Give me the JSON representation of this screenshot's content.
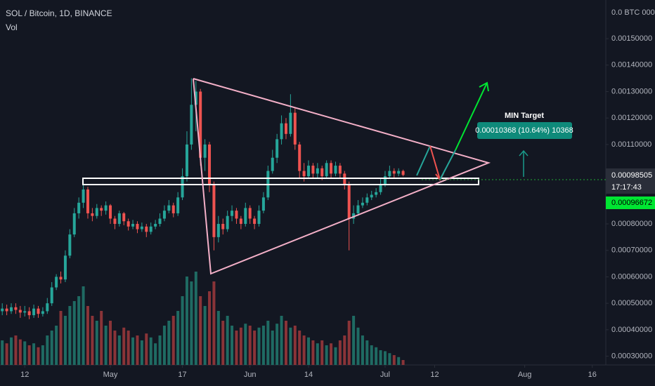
{
  "chart_data": {
    "type": "candlestick",
    "title": "SOL / Bitcoin, 1D, BINANCE",
    "volume_label": "Vol",
    "top_axis_label": "0.0 BTC 000",
    "up_color": "#26a69a",
    "down_color": "#ef5350",
    "volume_up_color": "#1f6b63",
    "volume_down_color": "#8a3438",
    "x": [
      -5,
      -4,
      -3,
      -2,
      -1,
      0,
      1,
      2,
      3,
      4,
      5,
      6,
      7,
      8,
      9,
      10,
      11,
      12,
      13,
      14,
      15,
      16,
      17,
      18,
      19,
      20,
      21,
      22,
      23,
      24,
      25,
      26,
      27,
      28,
      29,
      30,
      31,
      32,
      33,
      34,
      35,
      36,
      37,
      38,
      39,
      40,
      41,
      42,
      43,
      44,
      45,
      46,
      47,
      48,
      49,
      50,
      51,
      52,
      53,
      54,
      55,
      56,
      57,
      58,
      59,
      60,
      61,
      62,
      63,
      64,
      65,
      66,
      67,
      68,
      69,
      70,
      71,
      72,
      73,
      74,
      75,
      76,
      77,
      78,
      79,
      80,
      81,
      82,
      83,
      84
    ],
    "open": [
      0.00047,
      0.00048,
      0.00047,
      0.000485,
      0.000475,
      0.000465,
      0.00047,
      0.000455,
      0.00048,
      0.00046,
      0.00047,
      0.0005,
      0.00056,
      0.0006,
      0.00059,
      0.00068,
      0.00076,
      0.00084,
      0.00088,
      0.00093,
      0.00084,
      0.00083,
      0.00086,
      0.00085,
      0.00087,
      0.00082,
      0.0008,
      0.00084,
      0.00081,
      0.00079,
      0.0008,
      0.00078,
      0.00079,
      0.00077,
      0.00079,
      0.0008,
      0.00082,
      0.00085,
      0.00087,
      0.00084,
      0.0009,
      0.00098,
      0.0011,
      0.00125,
      0.0013,
      0.00105,
      0.0011,
      0.00095,
      0.00075,
      0.0008,
      0.00078,
      0.00083,
      0.00085,
      0.00082,
      0.0008,
      0.00086,
      0.00082,
      0.0008,
      0.00085,
      0.0009,
      0.001,
      0.00105,
      0.00112,
      0.00118,
      0.00114,
      0.00122,
      0.0011,
      0.001,
      0.00098,
      0.00102,
      0.00099,
      0.00101,
      0.00098,
      0.00103,
      0.00099,
      0.00102,
      0.00099,
      0.00095,
      0.00082,
      0.00084,
      0.00087,
      0.00088,
      0.0009,
      0.00091,
      0.00092,
      0.00095,
      0.00098,
      0.001,
      0.00099,
      0.001
    ],
    "high": [
      0.0005,
      0.000495,
      0.0005,
      0.0005,
      0.00049,
      0.00049,
      0.000485,
      0.000495,
      0.00049,
      0.000485,
      0.00052,
      0.00058,
      0.00061,
      0.00062,
      0.0007,
      0.00078,
      0.00086,
      0.0009,
      0.00096,
      0.00094,
      0.00086,
      0.000875,
      0.00087,
      0.000885,
      0.000875,
      0.00083,
      0.00085,
      0.000845,
      0.00082,
      0.000815,
      0.00081,
      0.000805,
      0.0008,
      0.000805,
      0.000815,
      0.00084,
      0.00087,
      0.00089,
      0.00088,
      0.00092,
      0.00101,
      0.00115,
      0.00135,
      0.00134,
      0.00131,
      0.00112,
      0.00111,
      0.00096,
      0.00083,
      0.00082,
      0.00085,
      0.00087,
      0.00086,
      0.00083,
      0.00088,
      0.00087,
      0.00083,
      0.00087,
      0.00092,
      0.00102,
      0.00108,
      0.00114,
      0.00121,
      0.0012,
      0.00129,
      0.00124,
      0.00111,
      0.00103,
      0.00104,
      0.00103,
      0.00103,
      0.00102,
      0.00104,
      0.00104,
      0.001035,
      0.00103,
      0.001,
      0.00096,
      0.00087,
      0.00089,
      0.0009,
      0.000915,
      0.000925,
      0.000935,
      0.00097,
      0.001,
      0.00102,
      0.00101,
      0.00101,
      0.001005
    ],
    "low": [
      0.000455,
      0.000455,
      0.00046,
      0.00046,
      0.000445,
      0.00045,
      0.00044,
      0.000445,
      0.000445,
      0.00045,
      0.00046,
      0.00049,
      0.00055,
      0.000575,
      0.00058,
      0.00067,
      0.00075,
      0.00082,
      0.00086,
      0.00082,
      0.00081,
      0.00082,
      0.00083,
      0.000835,
      0.0008,
      0.00078,
      0.00079,
      0.000795,
      0.000775,
      0.00078,
      0.000765,
      0.00077,
      0.00075,
      0.00076,
      0.00078,
      0.00079,
      0.00081,
      0.00084,
      0.000825,
      0.00083,
      0.00089,
      0.00096,
      0.00108,
      0.00115,
      0.00102,
      0.001,
      0.00092,
      0.0007,
      0.00073,
      0.00076,
      0.00077,
      0.00081,
      0.0008,
      0.00078,
      0.00079,
      0.0008,
      0.00078,
      0.00079,
      0.00084,
      0.00089,
      0.00099,
      0.00103,
      0.0011,
      0.00112,
      0.00113,
      0.00108,
      0.00097,
      0.00096,
      0.00097,
      0.00097,
      0.000975,
      0.000965,
      0.00097,
      0.000975,
      0.00098,
      0.000975,
      0.00093,
      0.0007,
      0.0008,
      0.00083,
      0.00086,
      0.00087,
      0.00089,
      0.0009,
      0.00091,
      0.00094,
      0.00097,
      0.000975,
      0.00098,
      0.00098
    ],
    "close": [
      0.00048,
      0.00047,
      0.000485,
      0.000475,
      0.000465,
      0.00047,
      0.000455,
      0.00048,
      0.00046,
      0.00047,
      0.0005,
      0.00056,
      0.0006,
      0.00059,
      0.00068,
      0.00076,
      0.00084,
      0.00088,
      0.00093,
      0.00084,
      0.00083,
      0.00086,
      0.00085,
      0.00087,
      0.00082,
      0.0008,
      0.00084,
      0.00081,
      0.00079,
      0.0008,
      0.00078,
      0.00079,
      0.00077,
      0.00079,
      0.0008,
      0.00082,
      0.00085,
      0.00087,
      0.00084,
      0.0009,
      0.00098,
      0.0011,
      0.00125,
      0.0013,
      0.00105,
      0.0011,
      0.00095,
      0.00075,
      0.0008,
      0.00078,
      0.00083,
      0.00085,
      0.00082,
      0.0008,
      0.00086,
      0.00082,
      0.0008,
      0.00085,
      0.0009,
      0.001,
      0.00105,
      0.00112,
      0.00118,
      0.00114,
      0.00122,
      0.0011,
      0.001,
      0.00098,
      0.00102,
      0.00099,
      0.00101,
      0.00098,
      0.00103,
      0.00099,
      0.00102,
      0.00099,
      0.00095,
      0.00082,
      0.00084,
      0.00087,
      0.00088,
      0.0009,
      0.00091,
      0.00092,
      0.00095,
      0.00098,
      0.001,
      0.00099,
      0.001,
      0.000985
    ],
    "volume": [
      25,
      22,
      28,
      30,
      26,
      24,
      20,
      22,
      18,
      20,
      30,
      35,
      40,
      55,
      50,
      60,
      65,
      70,
      80,
      60,
      50,
      45,
      55,
      40,
      45,
      35,
      30,
      38,
      35,
      28,
      30,
      25,
      32,
      28,
      22,
      30,
      40,
      45,
      50,
      55,
      70,
      90,
      85,
      95,
      70,
      60,
      75,
      85,
      55,
      45,
      50,
      40,
      35,
      38,
      42,
      40,
      35,
      38,
      40,
      45,
      35,
      42,
      50,
      45,
      38,
      40,
      35,
      30,
      28,
      25,
      22,
      25,
      20,
      22,
      18,
      25,
      30,
      45,
      50,
      38,
      30,
      25,
      20,
      18,
      15,
      14,
      12,
      10,
      8,
      5
    ],
    "xlim": [
      -5.5,
      129
    ],
    "ylim": [
      0.000267,
      0.001646
    ],
    "vlim": [
      0,
      100
    ],
    "xticks": [
      {
        "value": 0,
        "label": "12"
      },
      {
        "value": 19,
        "label": "May"
      },
      {
        "value": 35,
        "label": "17"
      },
      {
        "value": 50,
        "label": "Jun"
      },
      {
        "value": 63,
        "label": "14"
      },
      {
        "value": 80,
        "label": "Jul"
      },
      {
        "value": 91,
        "label": "12"
      },
      {
        "value": 111,
        "label": "Aug"
      },
      {
        "value": 126,
        "label": "16"
      }
    ],
    "yticks": [
      {
        "value": 0.0003,
        "label": "0.00030000"
      },
      {
        "value": 0.0004,
        "label": "0.00040000"
      },
      {
        "value": 0.0005,
        "label": "0.00050000"
      },
      {
        "value": 0.0006,
        "label": "0.00060000"
      },
      {
        "value": 0.0007,
        "label": "0.00070000"
      },
      {
        "value": 0.0008,
        "label": "0.00080000"
      },
      {
        "value": 0.0011,
        "label": "0.00110000"
      },
      {
        "value": 0.0012,
        "label": "0.00120000"
      },
      {
        "value": 0.0013,
        "label": "0.00130000"
      },
      {
        "value": 0.0014,
        "label": "0.00140000"
      },
      {
        "value": 0.0015,
        "label": "0.00150000"
      }
    ],
    "target_title": "MIN Target",
    "target_label": "0.00010368 (10.64%) 10368",
    "last_price": "0.00098505",
    "countdown": "17:17:43",
    "marker_price": "0.00096672"
  }
}
